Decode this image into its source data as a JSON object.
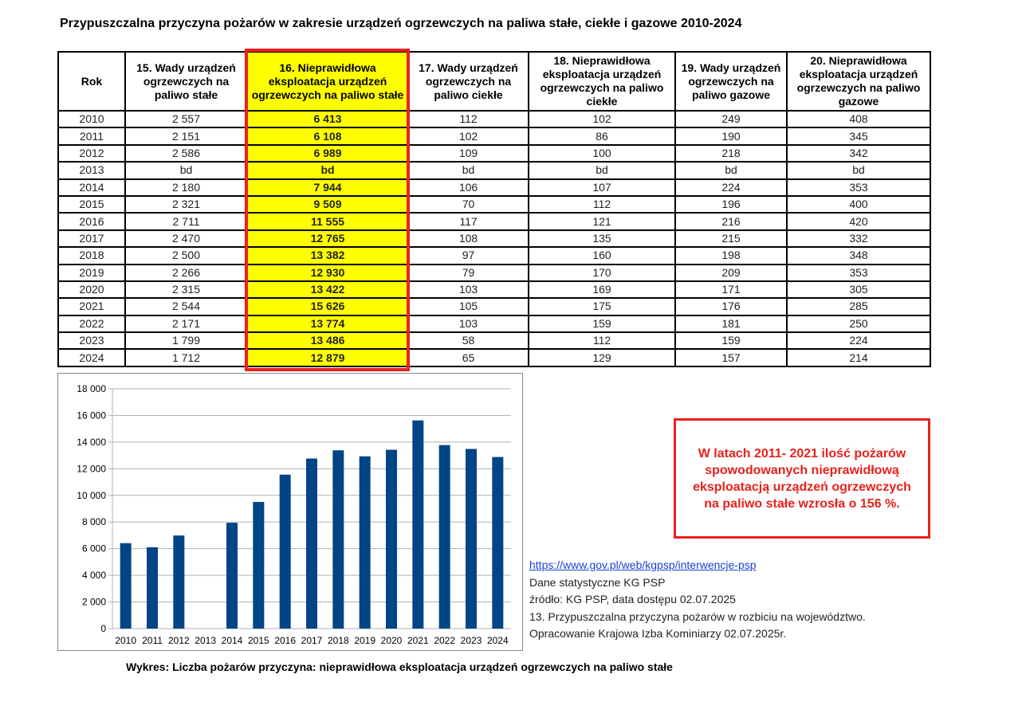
{
  "title": "Przypuszczalna przyczyna pożarów w zakresie urządzeń ogrzewczych na paliwa stałe, ciekłe i gazowe 2010-2024",
  "table": {
    "headers": [
      "Rok",
      "15. Wady urządzeń ogrzewczych na paliwo stałe",
      "16. Nieprawidłowa eksploatacja urządzeń ogrzewczych na paliwo stałe",
      "17. Wady urządzeń ogrzewczych na paliwo ciekłe",
      "18. Nieprawidłowa eksploatacja urządzeń ogrzewczych na paliwo ciekłe",
      "19. Wady urządzeń ogrzewczych na paliwo gazowe",
      "20. Nieprawidłowa eksploatacja urządzeń ogrzewczych na paliwo gazowe"
    ],
    "rows": [
      [
        "2010",
        "2 557",
        "6 413",
        "112",
        "102",
        "249",
        "408"
      ],
      [
        "2011",
        "2 151",
        "6 108",
        "102",
        "86",
        "190",
        "345"
      ],
      [
        "2012",
        "2 586",
        "6 989",
        "109",
        "100",
        "218",
        "342"
      ],
      [
        "2013",
        "bd",
        "bd",
        "bd",
        "bd",
        "bd",
        "bd"
      ],
      [
        "2014",
        "2 180",
        "7 944",
        "106",
        "107",
        "224",
        "353"
      ],
      [
        "2015",
        "2 321",
        "9 509",
        "70",
        "112",
        "196",
        "400"
      ],
      [
        "2016",
        "2 711",
        "11 555",
        "117",
        "121",
        "216",
        "420"
      ],
      [
        "2017",
        "2 470",
        "12 765",
        "108",
        "135",
        "215",
        "332"
      ],
      [
        "2018",
        "2 500",
        "13 382",
        "97",
        "160",
        "198",
        "348"
      ],
      [
        "2019",
        "2 266",
        "12 930",
        "79",
        "170",
        "209",
        "353"
      ],
      [
        "2020",
        "2 315",
        "13 422",
        "103",
        "169",
        "171",
        "305"
      ],
      [
        "2021",
        "2 544",
        "15 626",
        "105",
        "175",
        "176",
        "285"
      ],
      [
        "2022",
        "2 171",
        "13 774",
        "103",
        "159",
        "181",
        "250"
      ],
      [
        "2023",
        "1 799",
        "13 486",
        "58",
        "112",
        "159",
        "224"
      ],
      [
        "2024",
        "1 712",
        "12 879",
        "65",
        "129",
        "157",
        "214"
      ]
    ],
    "highlight_color": "#ffff00",
    "highlight_border_color": "#e8211c"
  },
  "chart_data": {
    "type": "bar",
    "categories": [
      "2010",
      "2011",
      "2012",
      "2013",
      "2014",
      "2015",
      "2016",
      "2017",
      "2018",
      "2019",
      "2020",
      "2021",
      "2022",
      "2023",
      "2024"
    ],
    "values": [
      6413,
      6108,
      6989,
      null,
      7944,
      9509,
      11555,
      12765,
      13382,
      12930,
      13422,
      15626,
      13774,
      13486,
      12879
    ],
    "ylim": [
      0,
      18000
    ],
    "yticks": [
      "0",
      "2 000",
      "4 000",
      "6 000",
      "8 000",
      "10 000",
      "12 000",
      "14 000",
      "16 000",
      "18 000"
    ],
    "grid": true,
    "bar_color": "#004586",
    "title": "",
    "xlabel": "",
    "ylabel": ""
  },
  "note": {
    "lines": [
      "W latach  2011- 2021 ilość pożarów",
      "spowodowanych nieprawidłową",
      "eksploatacją urządzeń ogrzewczych",
      "na paliwo stałe wzrosła o 156 %."
    ]
  },
  "source": {
    "link": "https://www.gov.pl/web/kgpsp/interwencje-psp",
    "lines": [
      "Dane statystyczne KG PSP",
      "źródło: KG PSP, data dostępu 02.07.2025",
      "13. Przypuszczalna przyczyna pożarów w rozbiciu na województwo.",
      "Opracowanie Krajowa Izba Kominiarzy  02.07.2025r."
    ]
  },
  "caption": "Wykres:  Liczba pożarów przyczyna: nieprawidłowa eksploatacja urządzeń ogrzewczych na paliwo stałe"
}
